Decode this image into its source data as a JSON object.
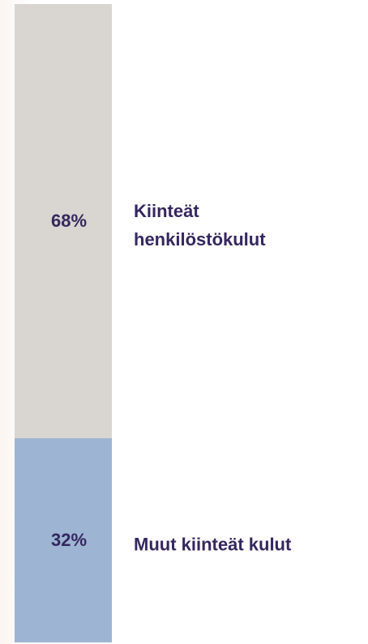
{
  "chart_data": {
    "type": "stacked_bar",
    "series": [
      {
        "name": "Muut kiinteät kulut",
        "color": "#9db5d2",
        "values": [
          32
        ],
        "value_labels": [
          "32%"
        ]
      },
      {
        "name": "Kiinteät henkilöstökulut",
        "color": "#d9d5d0",
        "values": [
          68
        ],
        "value_labels": [
          "68%"
        ]
      }
    ]
  }
}
